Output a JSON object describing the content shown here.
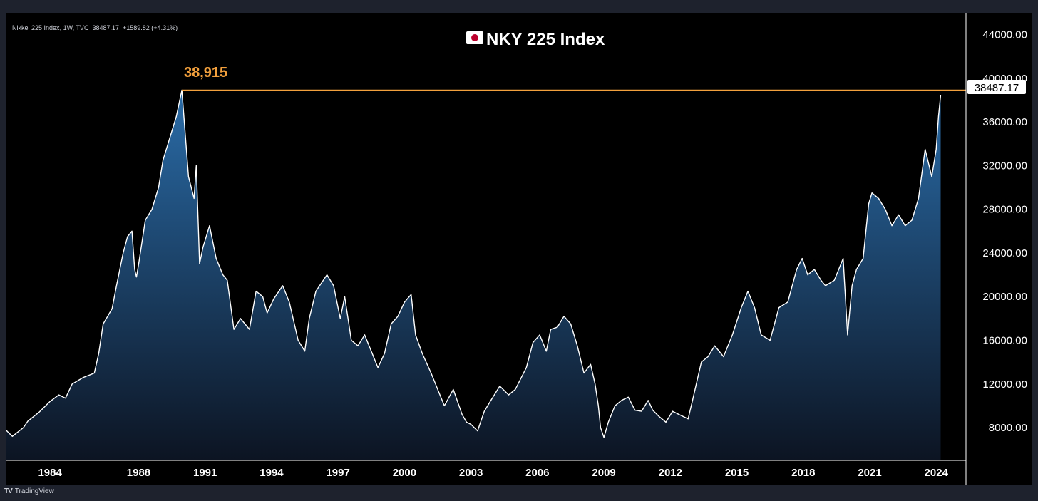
{
  "header": {
    "symbol": "Nikkei 225 Index",
    "interval": "1W",
    "exchange": "TVC",
    "last": "38487.17",
    "change": "+1589.82 (+4.31%)"
  },
  "footer": {
    "brand": "TradingView",
    "logo_icon": "tradingview-logo-icon"
  },
  "colors": {
    "background": "#000000",
    "frame": "#1e222d",
    "line": "#ffffff",
    "area_top": "#2a6ca8",
    "area_bottom": "#0c1422",
    "peak_line": "#f2a03d",
    "axis_text": "#ffffff"
  },
  "chart_data": {
    "type": "area",
    "title": "NKY 225 Index",
    "title_icon": "japan-flag-icon",
    "xlabel": "",
    "ylabel": "",
    "x_unit": "year",
    "xlim": [
      1982.0,
      2024.7
    ],
    "ylim": [
      5000,
      46000
    ],
    "y_ticks": [
      8000,
      12000,
      16000,
      20000,
      24000,
      28000,
      32000,
      36000,
      40000,
      44000
    ],
    "y_tick_labels": [
      "8000.00",
      "12000.00",
      "16000.00",
      "20000.00",
      "24000.00",
      "28000.00",
      "32000.00",
      "36000.00",
      "40000.00",
      "44000.00"
    ],
    "x_ticks": [
      1984,
      1988,
      1991,
      1994,
      1997,
      2000,
      2003,
      2006,
      2009,
      2012,
      2015,
      2018,
      2021,
      2024
    ],
    "x_tick_labels": [
      "1984",
      "1988",
      "1991",
      "1994",
      "1997",
      "2000",
      "2003",
      "2006",
      "2009",
      "2012",
      "2015",
      "2018",
      "2021",
      "2024"
    ],
    "grid": false,
    "last_value": 38487.17,
    "last_value_label": "38487.17",
    "annotation": {
      "label": "38,915",
      "value": 38915,
      "from_x": 1989.95
    },
    "series": [
      {
        "x": [
          1982.0,
          1982.3,
          1982.8,
          1983.0,
          1983.5,
          1984.0,
          1984.4,
          1984.7,
          1985.0,
          1985.5,
          1986.0,
          1986.2,
          1986.4,
          1986.6,
          1986.8,
          1987.0,
          1987.3,
          1987.5,
          1987.7,
          1987.82,
          1987.9,
          1988.0,
          1988.3,
          1988.6,
          1988.9,
          1989.1,
          1989.4,
          1989.7,
          1989.95,
          1990.1,
          1990.25,
          1990.5,
          1990.6,
          1990.7,
          1990.75,
          1990.9,
          1991.2,
          1991.5,
          1991.8,
          1992.0,
          1992.3,
          1992.6,
          1992.8,
          1993.0,
          1993.3,
          1993.6,
          1993.8,
          1994.1,
          1994.5,
          1994.8,
          1995.2,
          1995.5,
          1995.7,
          1996.0,
          1996.5,
          1996.8,
          1997.1,
          1997.3,
          1997.6,
          1997.9,
          1998.2,
          1998.5,
          1998.8,
          1999.1,
          1999.4,
          1999.7,
          2000.0,
          2000.3,
          2000.5,
          2000.8,
          2001.2,
          2001.6,
          2001.8,
          2002.2,
          2002.6,
          2002.8,
          2003.0,
          2003.3,
          2003.6,
          2003.9,
          2004.3,
          2004.7,
          2005.0,
          2005.5,
          2005.8,
          2006.1,
          2006.4,
          2006.6,
          2006.9,
          2007.2,
          2007.5,
          2007.8,
          2008.1,
          2008.4,
          2008.6,
          2008.75,
          2008.85,
          2009.0,
          2009.2,
          2009.5,
          2009.8,
          2010.1,
          2010.4,
          2010.7,
          2011.0,
          2011.2,
          2011.5,
          2011.8,
          2012.1,
          2012.4,
          2012.8,
          2013.0,
          2013.4,
          2013.7,
          2014.0,
          2014.4,
          2014.8,
          2015.2,
          2015.5,
          2015.8,
          2016.1,
          2016.5,
          2016.9,
          2017.3,
          2017.7,
          2017.95,
          2018.2,
          2018.5,
          2018.8,
          2019.0,
          2019.4,
          2019.8,
          2020.0,
          2020.2,
          2020.4,
          2020.7,
          2020.95,
          2021.1,
          2021.4,
          2021.7,
          2022.0,
          2022.3,
          2022.6,
          2022.9,
          2023.2,
          2023.5,
          2023.8,
          2024.0,
          2024.1,
          2024.2
        ],
        "y": [
          7800,
          7200,
          8000,
          8600,
          9400,
          10400,
          11000,
          10700,
          12000,
          12600,
          13000,
          14800,
          17500,
          18200,
          18900,
          21000,
          24000,
          25500,
          26000,
          22500,
          21800,
          23000,
          27000,
          28000,
          30000,
          32500,
          34500,
          36500,
          38915,
          35000,
          31000,
          29000,
          32000,
          26000,
          23000,
          24500,
          26500,
          23500,
          22000,
          21500,
          17000,
          18000,
          17500,
          17000,
          20500,
          20000,
          18500,
          19800,
          21000,
          19500,
          16000,
          15000,
          18000,
          20500,
          22000,
          21000,
          18000,
          20000,
          16000,
          15500,
          16500,
          15000,
          13500,
          14800,
          17500,
          18200,
          19500,
          20200,
          16500,
          14800,
          13000,
          11000,
          10000,
          11500,
          9200,
          8500,
          8300,
          7700,
          9500,
          10500,
          11800,
          11000,
          11500,
          13500,
          15800,
          16500,
          15000,
          17000,
          17200,
          18200,
          17500,
          15500,
          13000,
          13800,
          12000,
          10000,
          8000,
          7100,
          8500,
          10000,
          10500,
          10800,
          9600,
          9500,
          10500,
          9600,
          9000,
          8500,
          9500,
          9200,
          8800,
          10500,
          14000,
          14500,
          15500,
          14500,
          16500,
          19000,
          20500,
          19000,
          16500,
          16000,
          19000,
          19500,
          22500,
          23500,
          22000,
          22500,
          21500,
          21000,
          21500,
          23500,
          16500,
          21000,
          22500,
          23500,
          28500,
          29500,
          29000,
          28000,
          26500,
          27500,
          26500,
          27000,
          29000,
          33500,
          31000,
          33500,
          36500,
          38487.17
        ]
      }
    ]
  }
}
